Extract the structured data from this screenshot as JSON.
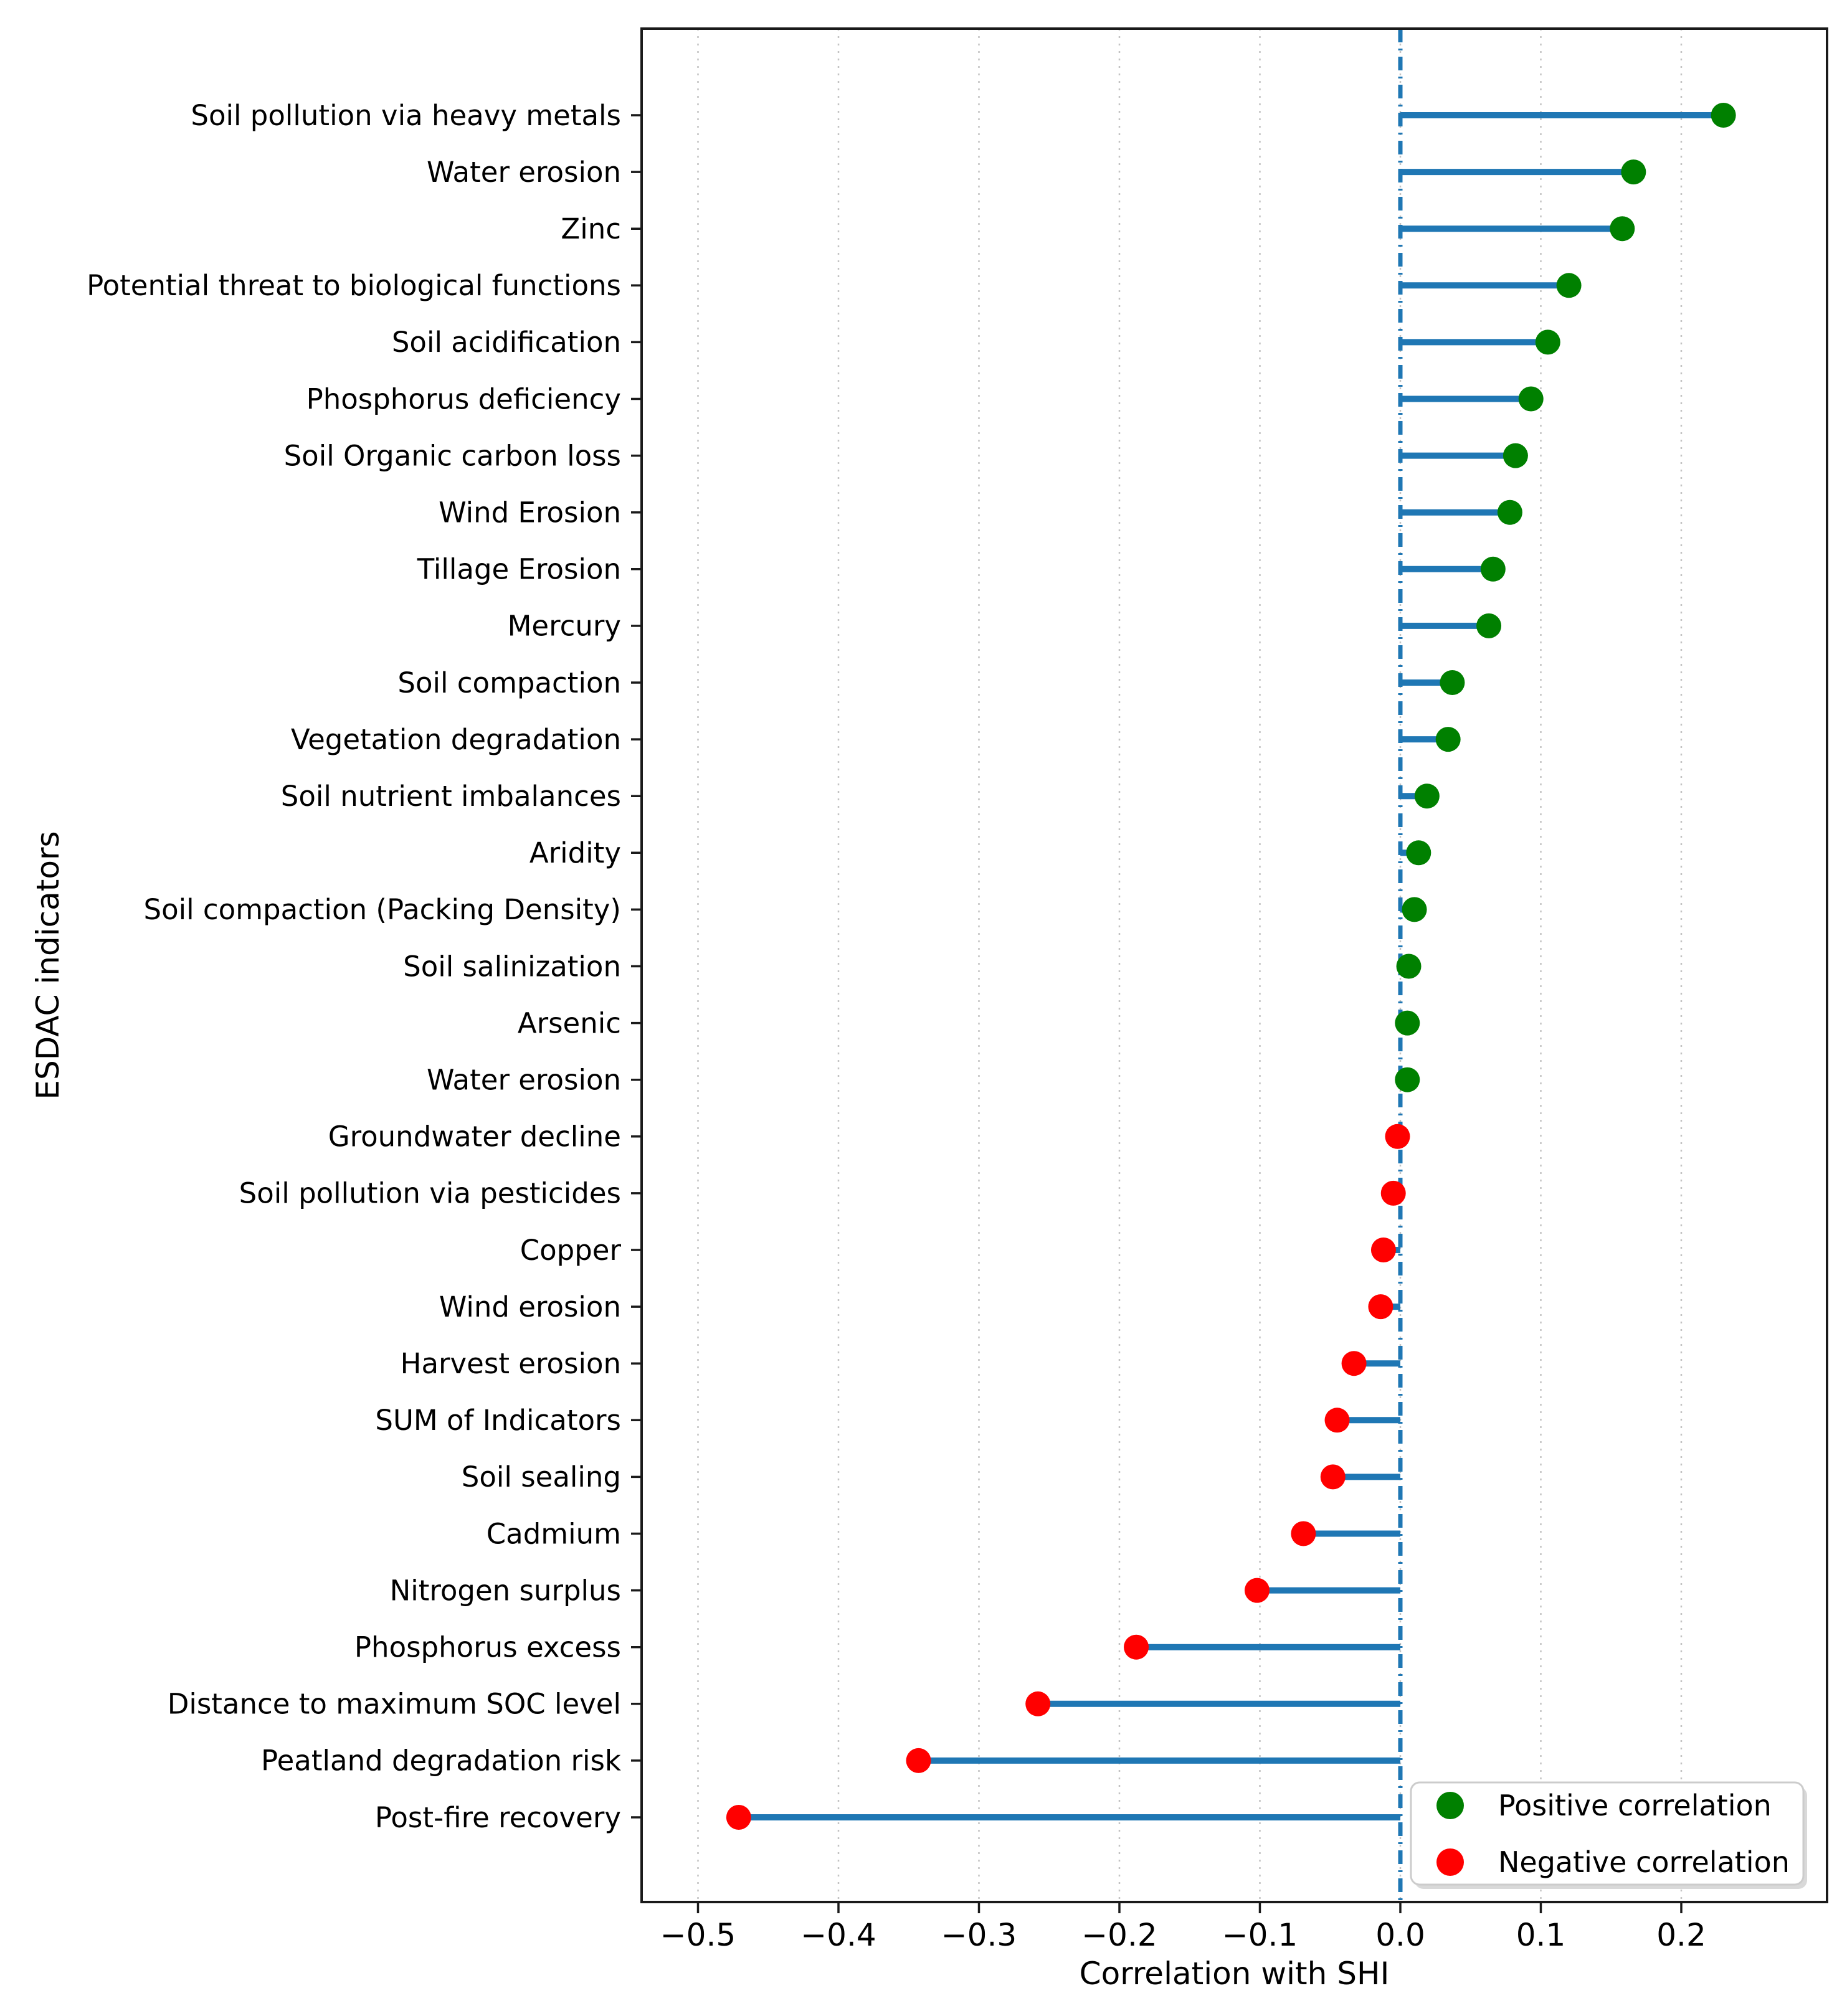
{
  "chart_data": {
    "type": "lollipop",
    "orientation": "horizontal",
    "title": "",
    "xlabel": "Correlation with SHI",
    "ylabel": "ESDAC indicators",
    "categories": [
      "Soil pollution via heavy metals",
      "Water erosion",
      "Zinc",
      "Potential threat to biological functions",
      "Soil acidification",
      "Phosphorus deficiency",
      "Soil Organic carbon loss",
      "Wind Erosion",
      "Tillage Erosion",
      "Mercury",
      "Soil compaction",
      "Vegetation degradation",
      "Soil nutrient imbalances",
      "Aridity",
      "Soil compaction (Packing Density)",
      "Soil salinization",
      "Arsenic",
      "Water erosion",
      "Groundwater decline",
      "Soil pollution via pesticides",
      "Copper",
      "Wind erosion",
      "Harvest erosion",
      "SUM of Indicators",
      "Soil sealing",
      "Cadmium",
      "Nitrogen surplus",
      "Phosphorus excess",
      "Distance to maximum SOC level",
      "Peatland degradation risk",
      "Post-fire recovery"
    ],
    "values": [
      0.23,
      0.166,
      0.158,
      0.12,
      0.105,
      0.093,
      0.082,
      0.078,
      0.066,
      0.063,
      0.037,
      0.034,
      0.019,
      0.013,
      0.01,
      0.006,
      0.005,
      0.005,
      -0.002,
      -0.005,
      -0.012,
      -0.014,
      -0.033,
      -0.045,
      -0.048,
      -0.069,
      -0.102,
      -0.188,
      -0.258,
      -0.343,
      -0.471
    ],
    "xlim": [
      -0.54,
      0.304
    ],
    "xticks": [
      -0.5,
      -0.4,
      -0.3,
      -0.2,
      -0.1,
      0.0,
      0.1,
      0.2
    ],
    "xtick_labels": [
      "−0.5",
      "−0.4",
      "−0.3",
      "−0.2",
      "−0.1",
      "0.0",
      "0.1",
      "0.2"
    ],
    "grid": "vertical dotted gridlines at each x tick",
    "zero_line": {
      "x": 0.0,
      "style": "dash-dot",
      "color": "#1f77b4"
    },
    "stem_color": "#1f77b4",
    "positive_color": "#008000",
    "negative_color": "#ff0000",
    "legend": {
      "position": "lower right",
      "entries": [
        {
          "label": "Positive correlation",
          "color": "#008000"
        },
        {
          "label": "Negative correlation",
          "color": "#ff0000"
        }
      ]
    }
  }
}
